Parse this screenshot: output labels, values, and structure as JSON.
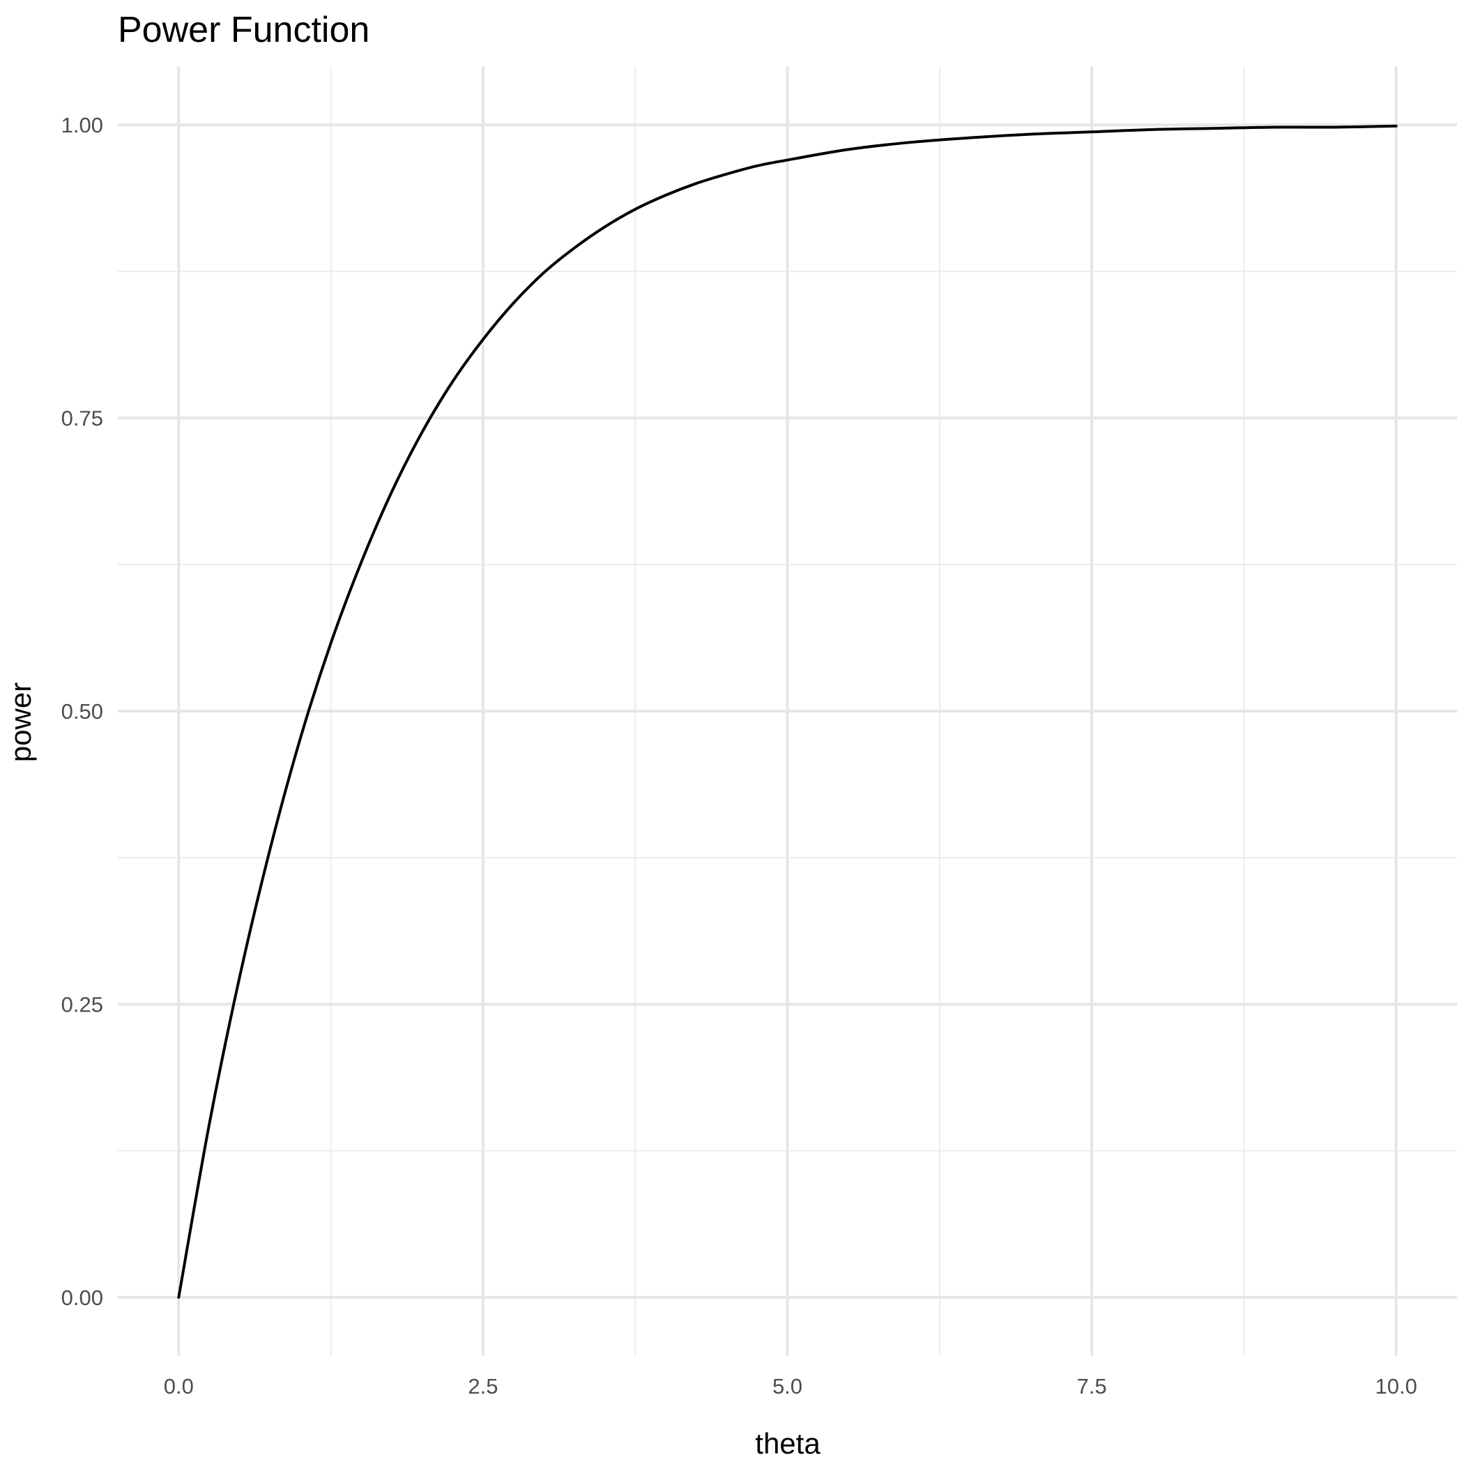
{
  "chart_data": {
    "type": "line",
    "title": "Power Function",
    "xlabel": "theta",
    "ylabel": "power",
    "xlim": [
      -0.5,
      10.5
    ],
    "ylim": [
      -0.05,
      1.05
    ],
    "x_ticks": [
      0.0,
      2.5,
      5.0,
      7.5,
      10.0
    ],
    "x_tick_labels": [
      "0.0",
      "2.5",
      "5.0",
      "7.5",
      "10.0"
    ],
    "x_minor_ticks": [
      1.25,
      3.75,
      6.25,
      8.75
    ],
    "y_ticks": [
      0.0,
      0.25,
      0.5,
      0.75,
      1.0
    ],
    "y_tick_labels": [
      "0.00",
      "0.25",
      "0.50",
      "0.75",
      "1.00"
    ],
    "y_minor_ticks": [
      0.125,
      0.375,
      0.625,
      0.875
    ],
    "grid": true,
    "legend": "none",
    "series": [
      {
        "color": "#000000",
        "x": [
          0,
          0.25,
          0.5,
          0.75,
          1.0,
          1.25,
          1.5,
          1.75,
          2.0,
          2.25,
          2.5,
          2.75,
          3.0,
          3.25,
          3.5,
          3.75,
          4.0,
          4.25,
          4.5,
          4.75,
          5.0,
          5.5,
          6.0,
          6.5,
          7.0,
          7.5,
          8.0,
          8.5,
          9.0,
          9.5,
          10.0
        ],
        "y": [
          0.0,
          0.147,
          0.273,
          0.382,
          0.477,
          0.558,
          0.627,
          0.687,
          0.738,
          0.781,
          0.817,
          0.848,
          0.874,
          0.895,
          0.913,
          0.928,
          0.94,
          0.95,
          0.958,
          0.965,
          0.97,
          0.979,
          0.985,
          0.989,
          0.992,
          0.994,
          0.996,
          0.997,
          0.998,
          0.998,
          0.999
        ]
      }
    ]
  }
}
